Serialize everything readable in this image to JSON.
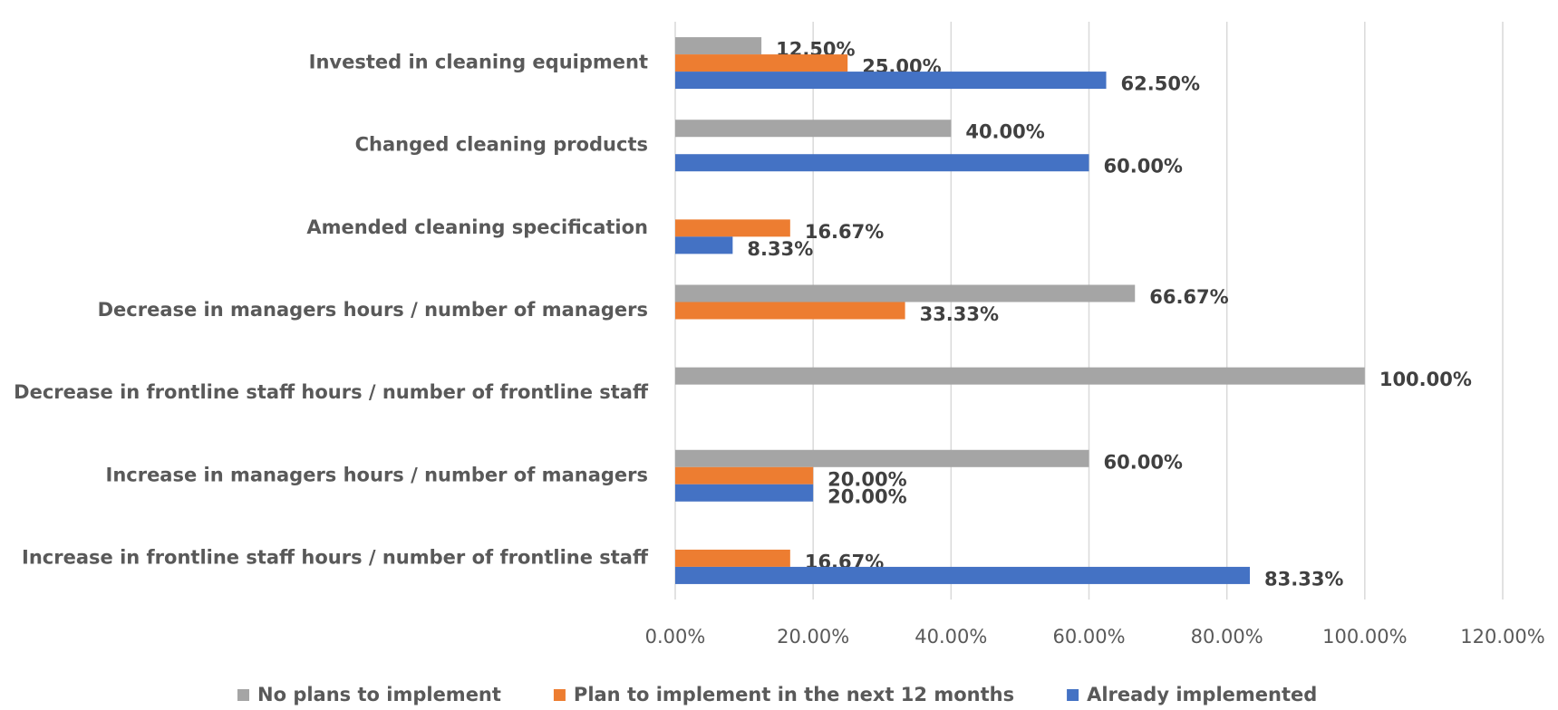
{
  "chart_data": {
    "type": "barh",
    "categories": [
      "Invested in cleaning equipment",
      "Changed cleaning products",
      "Amended cleaning specification",
      "Decrease in managers hours / number of managers",
      "Decrease in frontline staff hours / number of frontline staff",
      "Increase in managers hours / number of managers",
      "Increase in frontline staff hours / number of frontline staff"
    ],
    "series": [
      {
        "name": "No plans to implement",
        "color": "#a5a5a5",
        "values": [
          12.5,
          40,
          null,
          66.67,
          100,
          60,
          null
        ],
        "value_labels": [
          "12.50%",
          "40.00%",
          null,
          "66.67%",
          "100.00%",
          "60.00%",
          null
        ]
      },
      {
        "name": "Plan to implement in the next 12 months",
        "color": "#ed7d31",
        "values": [
          25,
          null,
          16.67,
          33.33,
          null,
          20,
          16.67
        ],
        "value_labels": [
          "25.00%",
          null,
          "16.67%",
          "33.33%",
          null,
          "20.00%",
          "16.67%"
        ]
      },
      {
        "name": "Already implemented",
        "color": "#4472c4",
        "values": [
          62.5,
          60,
          8.33,
          null,
          null,
          20,
          83.33
        ],
        "value_labels": [
          "62.50%",
          "60.00%",
          "8.33%",
          null,
          null,
          "20.00%",
          "83.33%"
        ]
      }
    ],
    "xlim": [
      0,
      120
    ],
    "xticks": [
      {
        "value": 0,
        "label": "0.00%"
      },
      {
        "value": 20,
        "label": "20.00%"
      },
      {
        "value": 40,
        "label": "40.00%"
      },
      {
        "value": 60,
        "label": "60.00%"
      },
      {
        "value": 80,
        "label": "80.00%"
      },
      {
        "value": 100,
        "label": "100.00%"
      },
      {
        "value": 120,
        "label": "120.00%"
      }
    ],
    "grid": true,
    "legend": "bottom"
  }
}
